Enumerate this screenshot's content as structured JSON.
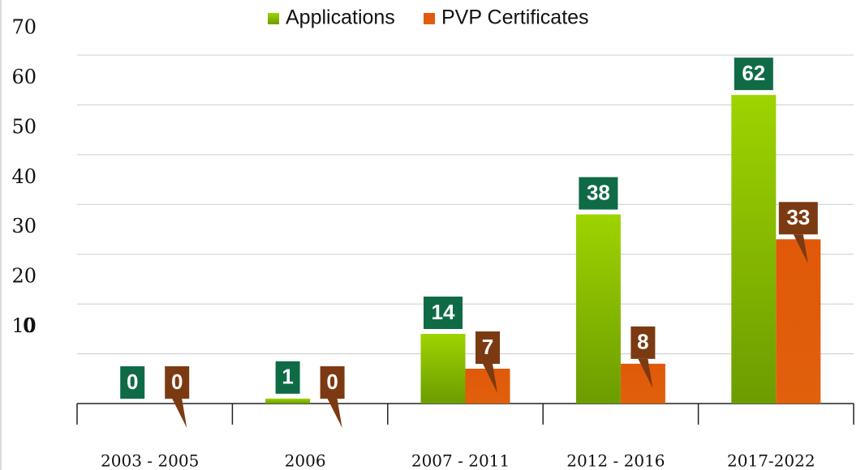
{
  "chart_data": {
    "type": "bar",
    "categories": [
      "2003 - 2005",
      "2006",
      "2007 - 2011",
      "2012 - 2016",
      "2017-2022"
    ],
    "series": [
      {
        "name": "Applications",
        "color": "#86bf00",
        "label_color": "#0f6b45",
        "values": [
          0,
          1,
          14,
          38,
          62
        ]
      },
      {
        "name": "PVP Certificates",
        "color": "#e05a0a",
        "label_color": "#7c3a12",
        "values": [
          0,
          0,
          7,
          8,
          33
        ]
      }
    ],
    "ylim": [
      0,
      70
    ],
    "yticks": [
      0,
      10,
      20,
      30,
      40,
      50,
      60,
      70
    ],
    "grid": true,
    "legend": "top"
  }
}
